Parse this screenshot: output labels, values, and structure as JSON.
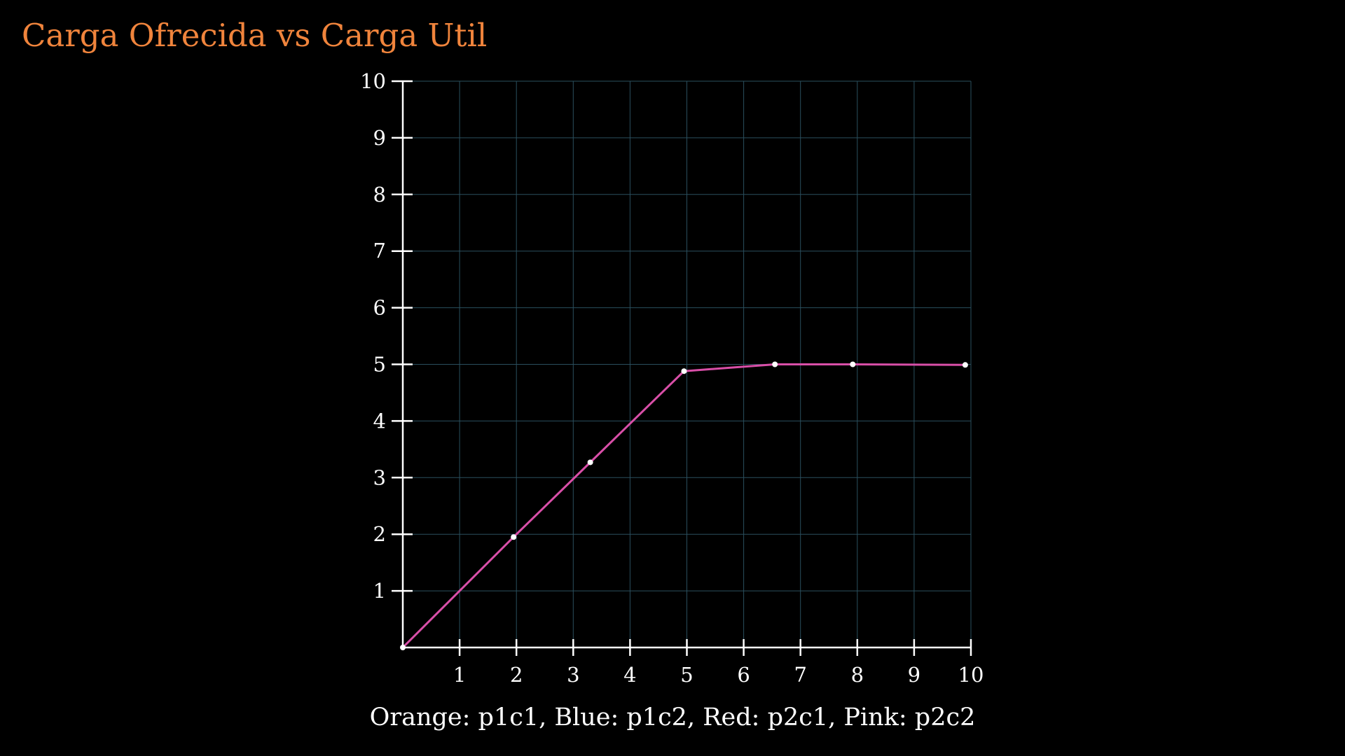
{
  "colors": {
    "background": "#000000",
    "title": "#f0843c",
    "axis": "#ffffff",
    "grid": "#2a4f5e",
    "line": "#d94fa8",
    "points": "#ffffff"
  },
  "chart_data": {
    "type": "line",
    "title": "Carga Ofrecida vs Carga Util",
    "caption": "Orange: p1c1, Blue: p1c2, Red: p2c1, Pink: p2c2",
    "xlabel": "",
    "ylabel": "",
    "xlim": [
      0,
      10
    ],
    "ylim": [
      0,
      10
    ],
    "x_ticks": [
      "1",
      "2",
      "3",
      "4",
      "5",
      "6",
      "7",
      "8",
      "9",
      "10"
    ],
    "y_ticks": [
      "1",
      "2",
      "3",
      "4",
      "5",
      "6",
      "7",
      "8",
      "9",
      "10"
    ],
    "grid": true,
    "series": [
      {
        "color": "pink",
        "points": [
          {
            "x": 0,
            "y": 0
          },
          {
            "x": 1.95,
            "y": 1.95
          },
          {
            "x": 3.3,
            "y": 3.27
          },
          {
            "x": 4.95,
            "y": 4.88
          },
          {
            "x": 6.55,
            "y": 5.0
          },
          {
            "x": 7.92,
            "y": 5.0
          },
          {
            "x": 9.9,
            "y": 4.99
          }
        ]
      }
    ]
  }
}
